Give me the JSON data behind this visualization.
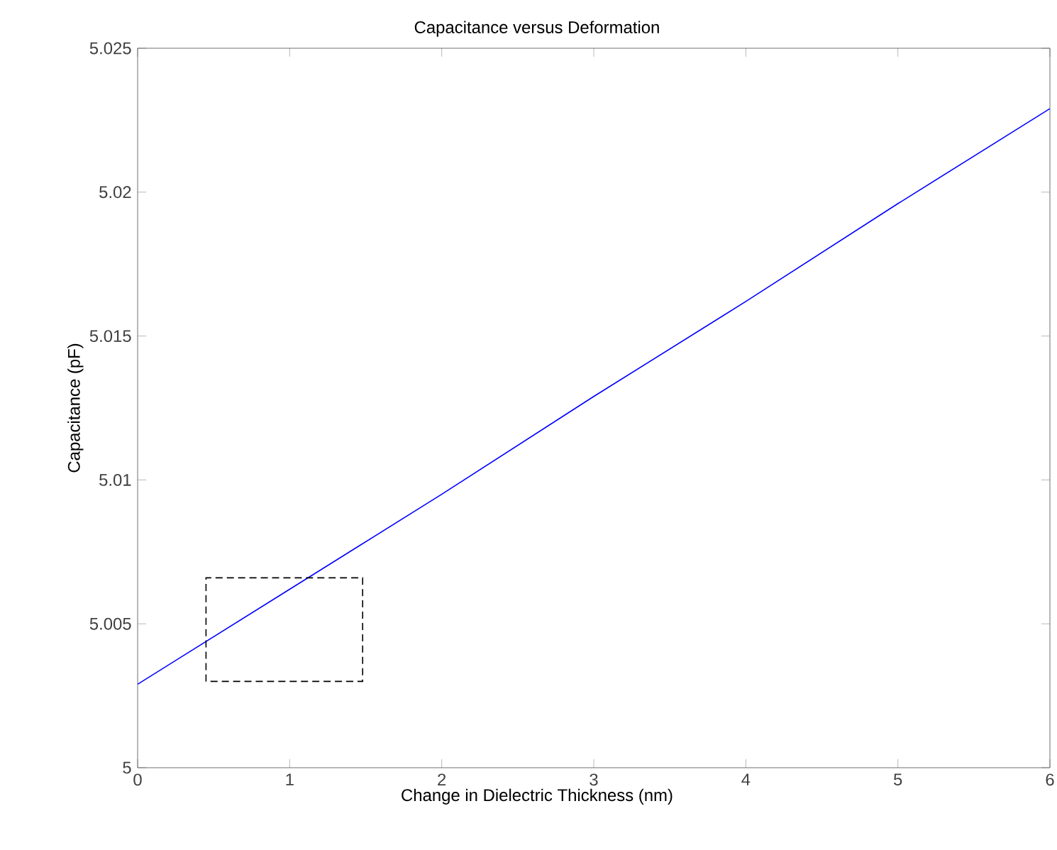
{
  "chart_data": {
    "type": "line",
    "title": "Capacitance versus Deformation",
    "xlabel": "Change in Dielectric Thickness (nm)",
    "ylabel": "Capacitance (pF)",
    "xlim": [
      0,
      6
    ],
    "ylim": [
      5,
      5.025
    ],
    "xticks": [
      0,
      1,
      2,
      3,
      4,
      5,
      6
    ],
    "yticks": [
      5,
      5.005,
      5.01,
      5.015,
      5.02,
      5.025
    ],
    "grid": false,
    "series": [
      {
        "color": "#0000ff",
        "line_style": "solid",
        "x": [
          0,
          1,
          2,
          3,
          4,
          5,
          6
        ],
        "values": [
          5.0029,
          5.0062,
          5.0095,
          5.0129,
          5.0162,
          5.0196,
          5.0229
        ]
      }
    ]
  }
}
